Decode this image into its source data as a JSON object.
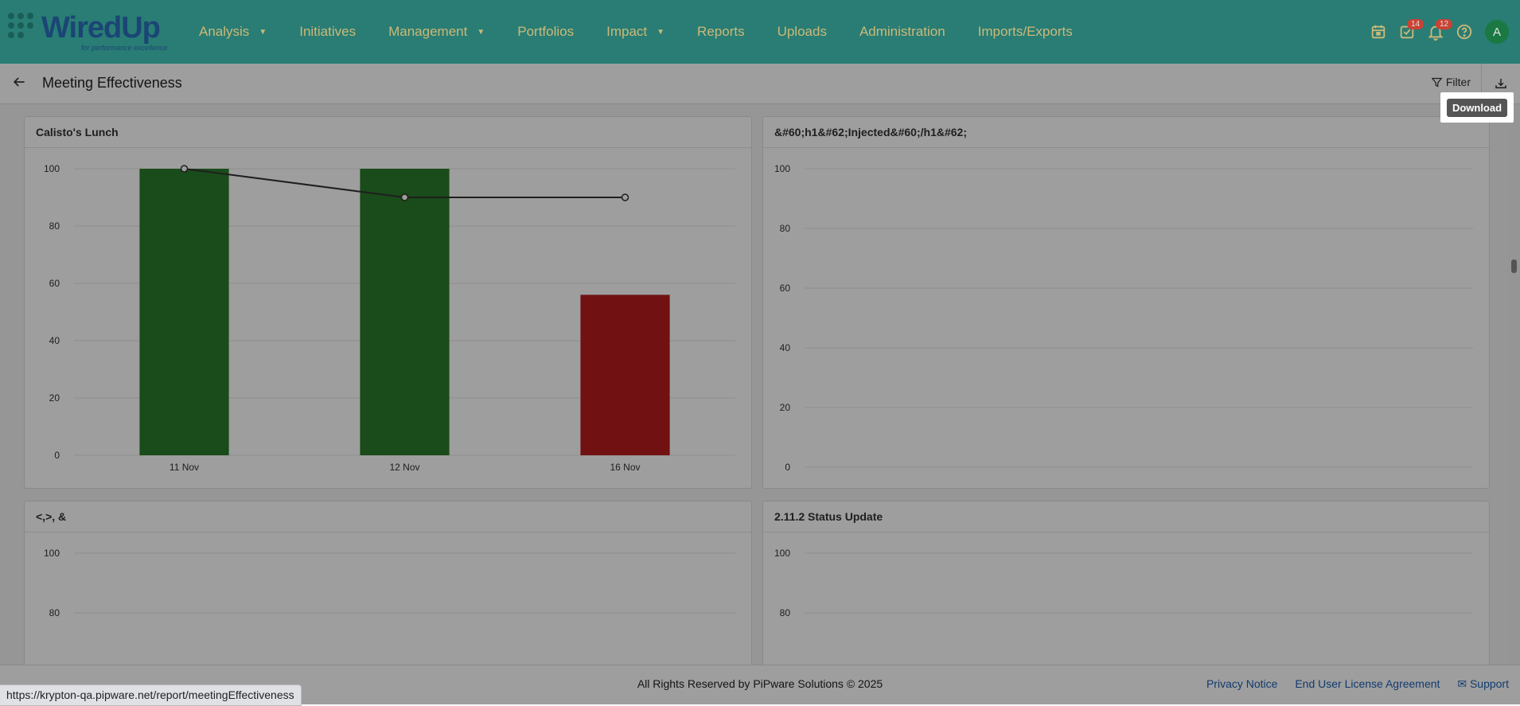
{
  "logo": {
    "name": "WiredUp",
    "tagline": "for performance excellence"
  },
  "nav": {
    "items": [
      {
        "label": "Analysis",
        "caret": true
      },
      {
        "label": "Initiatives",
        "caret": false
      },
      {
        "label": "Management",
        "caret": true
      },
      {
        "label": "Portfolios",
        "caret": false
      },
      {
        "label": "Impact",
        "caret": true
      },
      {
        "label": "Reports",
        "caret": false
      },
      {
        "label": "Uploads",
        "caret": false
      },
      {
        "label": "Administration",
        "caret": false
      },
      {
        "label": "Imports/Exports",
        "caret": false
      }
    ],
    "tasks_badge": "14",
    "notifications_badge": "12",
    "avatar": "A",
    "colors": {
      "bar": "#2f8f84",
      "text": "#e7d38a"
    }
  },
  "header": {
    "title": "Meeting Effectiveness",
    "filter_label": "Filter",
    "download_tooltip": "Download"
  },
  "chart_data": [
    {
      "type": "bar",
      "title": "Calisto's Lunch",
      "categories": [
        "11 Nov",
        "12 Nov",
        "16 Nov"
      ],
      "values": [
        100,
        100,
        56
      ],
      "bar_colors": [
        "#2a7a2a",
        "#2a7a2a",
        "#b71c1c"
      ],
      "line": [
        100,
        90,
        90
      ],
      "ylim": [
        0,
        100
      ],
      "yticks": [
        0,
        20,
        40,
        60,
        80,
        100
      ],
      "grid": true
    },
    {
      "type": "bar",
      "title": "&#60;h1&#62;Injected&#60;/h1&#62;",
      "categories": [],
      "values": [],
      "ylim": [
        0,
        100
      ],
      "yticks": [
        0,
        20,
        40,
        60,
        80,
        100
      ],
      "grid": true
    },
    {
      "type": "bar",
      "title": "<,>, &",
      "categories": [],
      "values": [],
      "ylim": [
        0,
        100
      ],
      "yticks": [
        80,
        100
      ],
      "grid": true
    },
    {
      "type": "bar",
      "title": "2.11.2 Status Update",
      "categories": [],
      "values": [],
      "ylim": [
        0,
        100
      ],
      "yticks": [
        80,
        100
      ],
      "grid": true
    }
  ],
  "footer": {
    "copyright": "All Rights Reserved by PiPware Solutions © 2025",
    "links": [
      "Privacy Notice",
      "End User License Agreement",
      "Support"
    ]
  },
  "statusbar": {
    "url": "https://krypton-qa.pipware.net/report/meetingEffectiveness"
  }
}
